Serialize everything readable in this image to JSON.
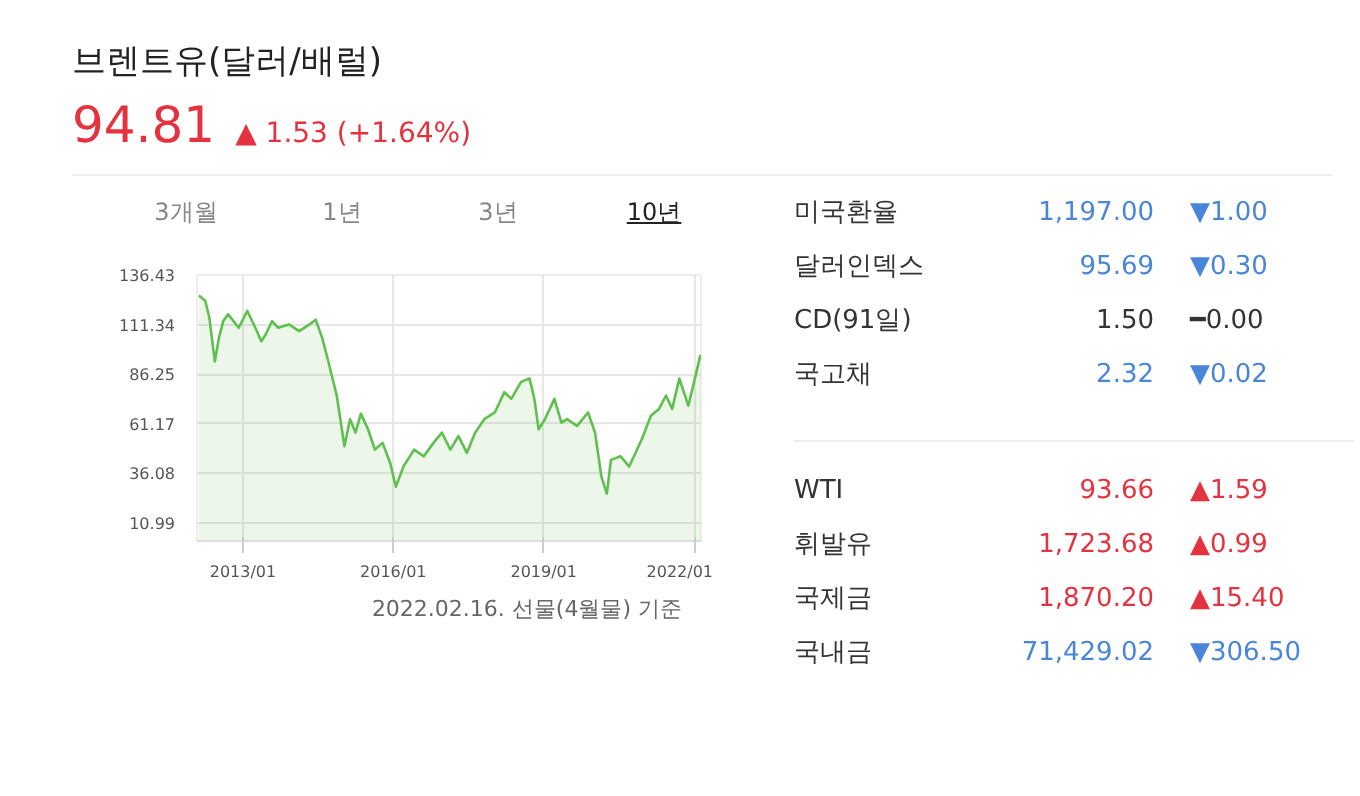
{
  "chart_data": {
    "type": "area",
    "title": "브렌트유(달러/배럴)",
    "subtitle": "94.81 ▲ 1.53 (+1.64%)",
    "x": [
      "2012-02-15",
      "2012-04-01",
      "2012-05-01",
      "2012-06-10",
      "2012-07-10",
      "2012-08-10",
      "2012-09-15",
      "2012-12-01",
      "2013-02-01",
      "2013-04-01",
      "2013-05-15",
      "2013-06-15",
      "2013-08-01",
      "2013-09-15",
      "2013-12-01",
      "2014-02-15",
      "2014-05-01",
      "2014-06-15",
      "2014-08-01",
      "2014-09-15",
      "2014-11-15",
      "2015-01-10",
      "2015-02-20",
      "2015-04-01",
      "2015-05-10",
      "2015-07-01",
      "2015-08-20",
      "2015-10-15",
      "2015-12-10",
      "2016-01-20",
      "2016-03-15",
      "2016-06-01",
      "2016-08-10",
      "2016-10-20",
      "2016-12-20",
      "2017-02-20",
      "2017-04-20",
      "2017-06-20",
      "2017-08-20",
      "2017-10-25",
      "2018-01-10",
      "2018-03-20",
      "2018-05-10",
      "2018-07-20",
      "2018-09-20",
      "2018-10-25",
      "2018-11-25",
      "2019-01-10",
      "2019-03-20",
      "2019-05-10",
      "2019-06-20",
      "2019-09-01",
      "2019-11-20",
      "2020-01-10",
      "2020-02-25",
      "2020-04-05",
      "2020-05-05",
      "2020-07-15",
      "2020-09-15",
      "2020-12-15",
      "2021-02-20",
      "2021-04-20",
      "2021-06-10",
      "2021-07-25",
      "2021-09-15",
      "2021-11-20",
      "2021-12-20",
      "2022-02-16"
    ],
    "series": [
      {
        "color": "#5fbf4f",
        "values": [
          126,
          123.4,
          114.8,
          92.6,
          104.6,
          113.1,
          116.5,
          109.7,
          118.3,
          109.7,
          102.8,
          106.3,
          113.1,
          109.7,
          111.4,
          108,
          111.4,
          113.8,
          104.6,
          92.6,
          75.4,
          49.7,
          63.4,
          56.6,
          66.2,
          58.3,
          48,
          51.4,
          41.1,
          29.2,
          39.4,
          48,
          44.6,
          51.4,
          56.6,
          48,
          54.9,
          46.3,
          56.6,
          63.4,
          66.8,
          77.1,
          73.7,
          82.3,
          84,
          73.7,
          58.3,
          63.4,
          73.7,
          61.7,
          63.4,
          60,
          66.8,
          56.6,
          34.4,
          25.7,
          42.8,
          44.6,
          39.4,
          53.1,
          65.1,
          68.6,
          75.4,
          68.6,
          84,
          70.3,
          78.9,
          96
        ]
      }
    ],
    "xlim": [
      "2012-02-01",
      "2022-02-20"
    ],
    "xticks": [
      {
        "value": "2013-01-01",
        "label": "2013/01"
      },
      {
        "value": "2016-01-01",
        "label": "2016/01"
      },
      {
        "value": "2019-01-01",
        "label": "2019/01"
      },
      {
        "value": "2022-01-01",
        "label": "2022/01"
      }
    ],
    "ylim": [
      1.7,
      136.43
    ],
    "yticks": [
      10.99,
      36.08,
      61.17,
      86.25,
      111.34,
      136.43
    ],
    "grid": true,
    "annotations": [
      "3개월",
      "1년",
      "3년",
      "10년",
      "2022.02.16. 선물(4월물) 기준",
      "미국환율",
      "1,197.00",
      "▼1.00",
      "달러인덱스",
      "95.69",
      "▼0.30",
      "CD(91일)",
      "1.50",
      "━0.00",
      "국고채",
      "2.32",
      "▼0.02",
      "WTI",
      "93.66",
      "▲1.59",
      "휘발유",
      "1,723.68",
      "▲0.99",
      "국제금",
      "1,870.20",
      "▲15.40",
      "국내금",
      "71,429.02",
      "▼306.50"
    ]
  }
}
